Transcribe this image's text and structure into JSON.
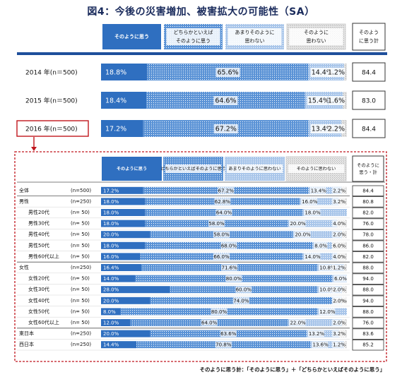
{
  "title": "図4：今後の災害増加、被害拡大の可能性（SA）",
  "colors": {
    "solid": "#2f6fc0",
    "dotted_fill": "#5b93d6",
    "light_fill": "#a9c6ea",
    "pale_fill": "#d2dbe6",
    "frame_red": "#c0161d",
    "header_bar": "#1f4f9b"
  },
  "top_legend": {
    "categories": [
      "そのように思う",
      "どちらかといえば\nそのように思う",
      "あまりそのように\n思わない",
      "そのように\n思わない"
    ],
    "total_header": "そのよう\nに思う計"
  },
  "bottom_legend": {
    "categories": [
      "そのように思う",
      "どちらかといえばそのように思う",
      "あまりそのように思わない",
      "そのように思わない"
    ],
    "total_header": "そのように\n思う・計"
  },
  "footnote": "そのように思う計：「そのように思う」＋「どちらかといえばそのように思う」",
  "chart_data": [
    {
      "type": "bar",
      "orientation": "horizontal",
      "stacked": true,
      "series_names": [
        "そのように思う",
        "どちらかといえばそのように思う",
        "あまりそのように思わない",
        "そのように思わない"
      ],
      "rows": [
        {
          "label": "2014 年(n＝500)",
          "values": [
            18.8,
            65.6,
            14.4,
            1.2
          ],
          "labels": [
            "18.8%",
            "65.6%",
            "14.4%",
            "1.2%"
          ],
          "total": "84.4"
        },
        {
          "label": "2015 年(n＝500)",
          "values": [
            18.4,
            64.6,
            15.4,
            1.6
          ],
          "labels": [
            "18.4%",
            "64.6%",
            "15.4%",
            "1.6%"
          ],
          "total": "83.0"
        },
        {
          "label": "2016 年(n＝500)",
          "values": [
            17.2,
            67.2,
            13.4,
            2.2
          ],
          "labels": [
            "17.2%",
            "67.2%",
            "13.4%",
            "2.2%"
          ],
          "total": "84.4",
          "highlight": true
        }
      ]
    },
    {
      "type": "bar",
      "orientation": "horizontal",
      "stacked": true,
      "series_names": [
        "そのように思う",
        "どちらかといえばそのように思う",
        "あまりそのように思わない",
        "そのように思わない"
      ],
      "rows": [
        {
          "label": "全体",
          "n": "(n=500)",
          "indent": false,
          "values": [
            17.2,
            67.2,
            13.4,
            2.2
          ],
          "labels": [
            "17.2%",
            "67.2%",
            "13.4%",
            "2.2%"
          ],
          "total": "84.4",
          "sep": true
        },
        {
          "label": "男性",
          "n": "(n=250)",
          "indent": false,
          "values": [
            18.0,
            62.8,
            16.0,
            3.2
          ],
          "labels": [
            "18.0%",
            "62.8%",
            "16.0%",
            "3.2%"
          ],
          "total": "80.8"
        },
        {
          "label": "男性20代",
          "n": "(n=  50)",
          "indent": true,
          "values": [
            18.0,
            64.0,
            18.0,
            0
          ],
          "labels": [
            "18.0%",
            "64.0%",
            "18.0%",
            ""
          ],
          "total": "82.0"
        },
        {
          "label": "男性30代",
          "n": "(n=  50)",
          "indent": true,
          "values": [
            18.0,
            58.0,
            20.0,
            4.0
          ],
          "labels": [
            "18.0%",
            "58.0%",
            "20.0%",
            "4.0%"
          ],
          "total": "76.0"
        },
        {
          "label": "男性40代",
          "n": "(n=  50)",
          "indent": true,
          "values": [
            20.0,
            58.0,
            20.0,
            2.0
          ],
          "labels": [
            "20.0%",
            "58.0%",
            "20.0%",
            "2.0%"
          ],
          "total": "78.0"
        },
        {
          "label": "男性50代",
          "n": "(n=  50)",
          "indent": true,
          "values": [
            18.0,
            68.0,
            8.0,
            6.0
          ],
          "labels": [
            "18.0%",
            "68.0%",
            "8.0%",
            "6.0%"
          ],
          "total": "86.0"
        },
        {
          "label": "男性60代以上",
          "n": "(n=  50)",
          "indent": true,
          "values": [
            16.0,
            66.0,
            14.0,
            4.0
          ],
          "labels": [
            "16.0%",
            "66.0%",
            "14.0%",
            "4.0%"
          ],
          "total": "82.0",
          "sep": true
        },
        {
          "label": "女性",
          "n": "(n=250)",
          "indent": false,
          "values": [
            16.4,
            71.6,
            10.8,
            1.2
          ],
          "labels": [
            "16.4%",
            "71.6%",
            "10.8%",
            "1.2%"
          ],
          "total": "88.0"
        },
        {
          "label": "女性20代",
          "n": "(n=  50)",
          "indent": true,
          "values": [
            14.0,
            80.0,
            6.0,
            0
          ],
          "labels": [
            "14.0%",
            "80.0%",
            "6.0%",
            ""
          ],
          "total": "94.0"
        },
        {
          "label": "女性30代",
          "n": "(n=  50)",
          "indent": true,
          "values": [
            28.0,
            60.0,
            10.0,
            2.0
          ],
          "labels": [
            "28.0%",
            "60.0%",
            "10.0%",
            "2.0%"
          ],
          "total": "88.0"
        },
        {
          "label": "女性40代",
          "n": "(n=  50)",
          "indent": true,
          "values": [
            20.0,
            74.0,
            4.0,
            2.0
          ],
          "labels": [
            "20.0%",
            "74.0%",
            "4.0%",
            "2.0%"
          ],
          "total": "94.0"
        },
        {
          "label": "女性50代",
          "n": "(n=  50)",
          "indent": true,
          "values": [
            8.0,
            80.0,
            12.0,
            0
          ],
          "labels": [
            "8.0%",
            "80.0%",
            "12.0%",
            ""
          ],
          "total": "88.0"
        },
        {
          "label": "女性60代以上",
          "n": "(n=  50)",
          "indent": true,
          "values": [
            12.0,
            64.0,
            22.0,
            2.0
          ],
          "labels": [
            "12.0%",
            "64.0%",
            "22.0%",
            "2.0%"
          ],
          "total": "76.0",
          "sep": true
        },
        {
          "label": "東日本",
          "n": "(n=250)",
          "indent": false,
          "values": [
            20.0,
            63.6,
            13.2,
            3.2
          ],
          "labels": [
            "20.0%",
            "63.6%",
            "13.2%",
            "3.2%"
          ],
          "total": "83.6"
        },
        {
          "label": "西日本",
          "n": "(n=250)",
          "indent": false,
          "values": [
            14.4,
            70.8,
            13.6,
            1.2
          ],
          "labels": [
            "14.4%",
            "70.8%",
            "13.6%",
            "1.2%"
          ],
          "total": "85.2"
        }
      ]
    }
  ]
}
